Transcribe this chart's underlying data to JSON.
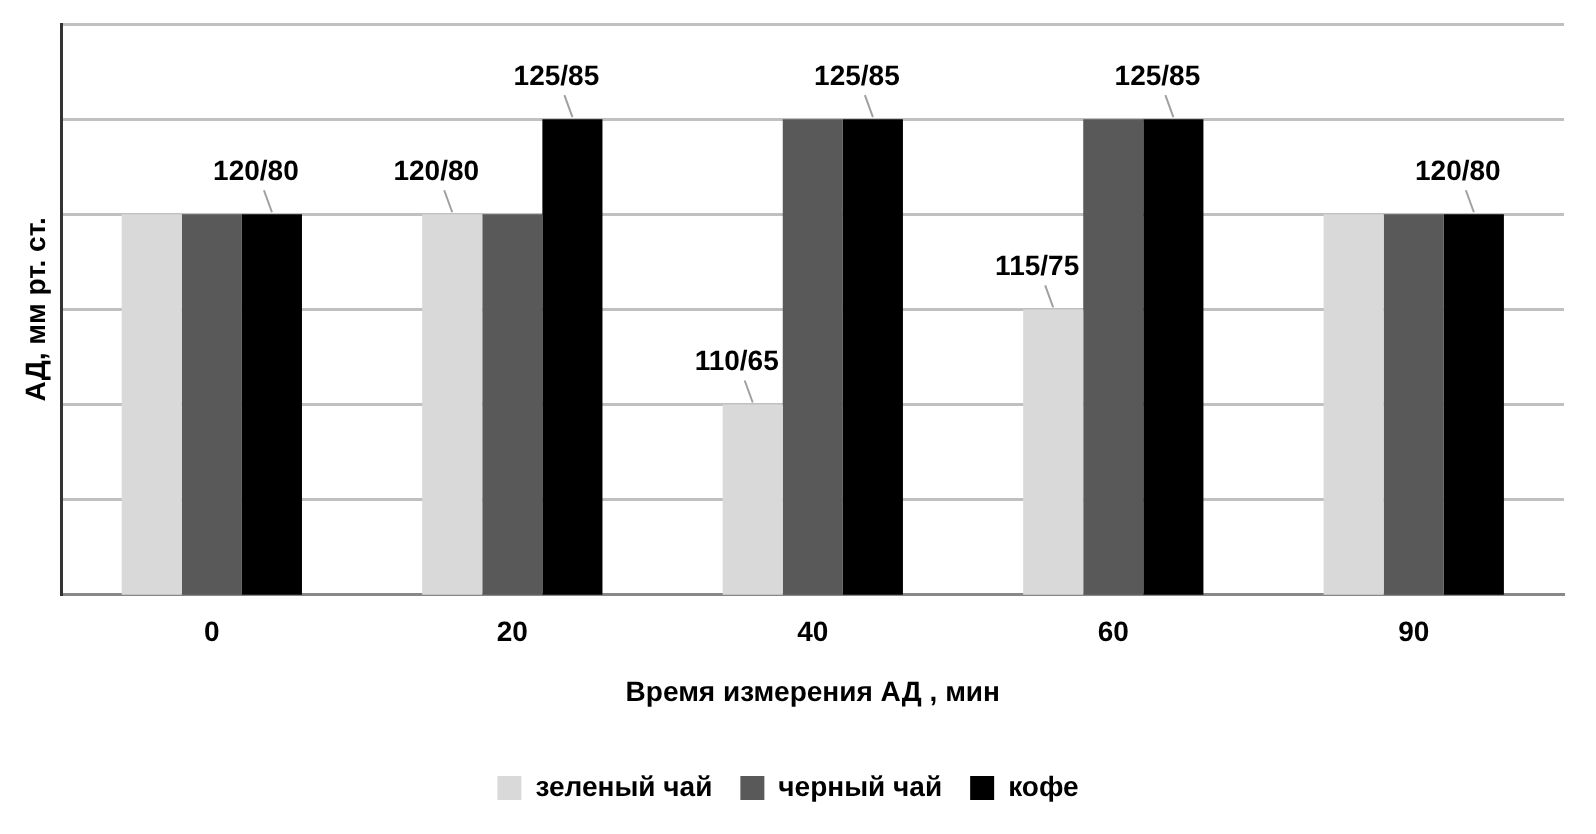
{
  "chart_data": {
    "type": "bar",
    "xlabel": "Время измерения АД , мин",
    "ylabel": "АД, мм рт. ст.",
    "categories": [
      "0",
      "20",
      "40",
      "60",
      "90"
    ],
    "ylim": [
      100,
      130
    ],
    "yticks": [
      {
        "value": 100,
        "label": null
      },
      {
        "value": 105,
        "label": null
      },
      {
        "value": 110,
        "label": null
      },
      {
        "value": 115,
        "label": null
      },
      {
        "value": 120,
        "label": null
      },
      {
        "value": 125,
        "label": null
      },
      {
        "value": 130,
        "label": null
      }
    ],
    "tick_labels": "x",
    "grid": "y",
    "legend": "bottom",
    "series": [
      {
        "name": "зеленый чай",
        "color": "#d9d9d9",
        "values": [
          120,
          120,
          110,
          115,
          120
        ],
        "value_labels": [
          null,
          "120/80",
          "110/65",
          "115/75",
          null
        ]
      },
      {
        "name": "черный чай",
        "color": "#595959",
        "values": [
          120,
          120,
          125,
          125,
          120
        ]
      },
      {
        "name": "кофе",
        "color": "#000000",
        "values": [
          120,
          125,
          125,
          125,
          120
        ],
        "value_labels": [
          "120/80",
          "125/85",
          "125/85",
          "125/85",
          "120/80"
        ]
      }
    ]
  }
}
